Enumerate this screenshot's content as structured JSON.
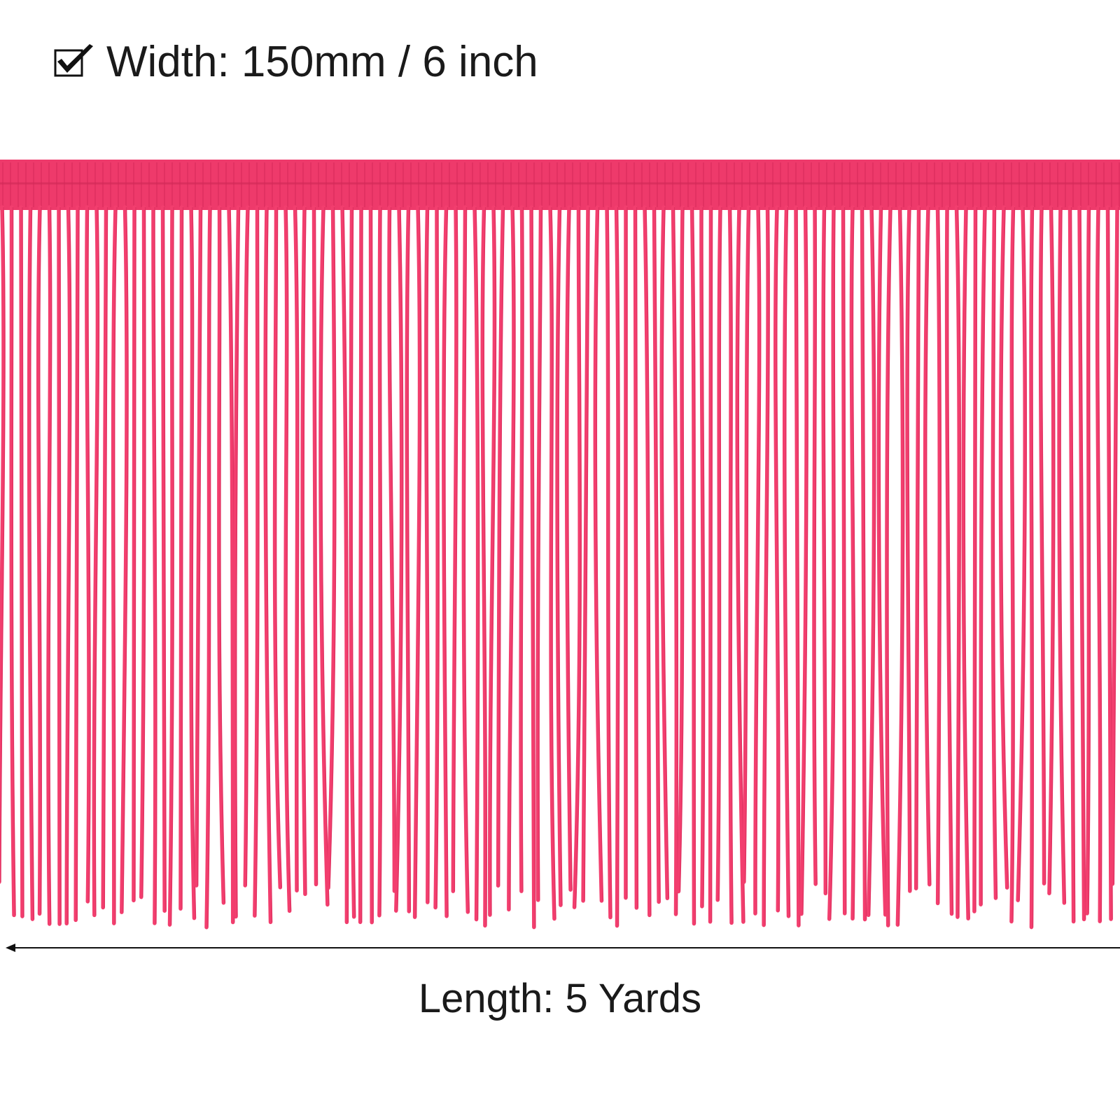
{
  "width_label": "Width: 150mm / 6 inch",
  "length_label": "Length: 5 Yards"
}
